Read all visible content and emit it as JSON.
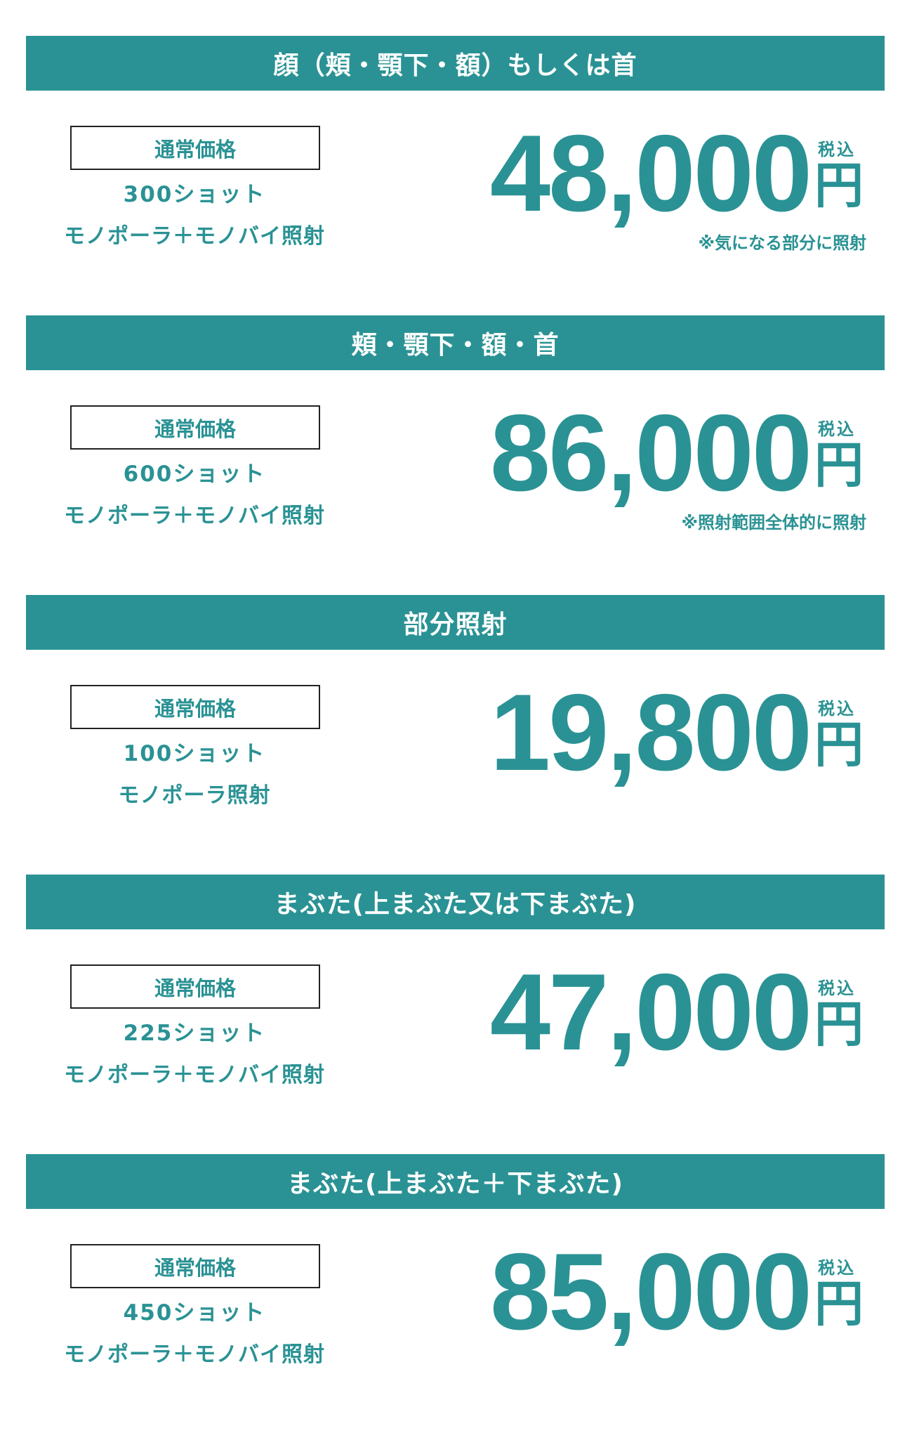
{
  "theme": {
    "accent": "#2a9294",
    "text": "#2a9294",
    "header_text": "#ffffff"
  },
  "plans": [
    {
      "title": "顔（頬・顎下・額）もしくは首",
      "label": "通常価格",
      "shots": "300ショット",
      "method": "モノポーラ＋モノバイ照射",
      "price": "48,000",
      "tax": "税込",
      "yen": "円",
      "note": "※気になる部分に照射"
    },
    {
      "title": "頬・顎下・額・首",
      "label": "通常価格",
      "shots": "600ショット",
      "method": "モノポーラ＋モノバイ照射",
      "price": "86,000",
      "tax": "税込",
      "yen": "円",
      "note": "※照射範囲全体的に照射"
    },
    {
      "title": "部分照射",
      "label": "通常価格",
      "shots": "100ショット",
      "method": "モノポーラ照射",
      "price": "19,800",
      "tax": "税込",
      "yen": "円",
      "note": ""
    },
    {
      "title": "まぶた(上まぶた又は下まぶた)",
      "label": "通常価格",
      "shots": "225ショット",
      "method": "モノポーラ＋モノバイ照射",
      "price": "47,000",
      "tax": "税込",
      "yen": "円",
      "note": ""
    },
    {
      "title": "まぶた(上まぶた＋下まぶた)",
      "label": "通常価格",
      "shots": "450ショット",
      "method": "モノポーラ＋モノバイ照射",
      "price": "85,000",
      "tax": "税込",
      "yen": "円",
      "note": ""
    }
  ]
}
